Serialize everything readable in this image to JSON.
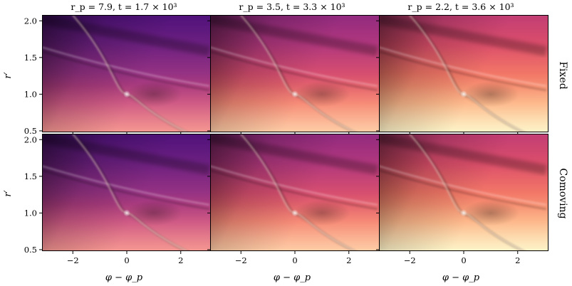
{
  "figure": {
    "column_titles": [
      "r_p = 7.9,   t = 1.7 × 10³",
      "r_p = 3.5,   t = 3.3 × 10³",
      "r_p = 2.2,   t = 3.6 × 10³"
    ],
    "row_labels": [
      "Fixed",
      "Comoving"
    ],
    "ylabel": "r′",
    "xlabel": "φ − φ_p"
  },
  "chart_data": {
    "type": "heatmap",
    "colormap": "magma",
    "grid": false,
    "layout": "2 rows × 3 columns",
    "xlabel": "φ − φ_p",
    "ylabel": "r′",
    "xlim": [
      -3.1416,
      3.1416
    ],
    "ylim": [
      0.48,
      2.08
    ],
    "xticks": [
      -2,
      0,
      2
    ],
    "xtick_labels": [
      "−2",
      "0",
      "2"
    ],
    "yticks": [
      0.5,
      1.0,
      1.5,
      2.0
    ],
    "ytick_labels": [
      "0.5",
      "1.0",
      "1.5",
      "2.0"
    ],
    "panels": [
      {
        "row": "Fixed",
        "r_p": 7.9,
        "t": 1700,
        "brightness": 0.0
      },
      {
        "row": "Fixed",
        "r_p": 3.5,
        "t": 3300,
        "brightness": 0.16
      },
      {
        "row": "Fixed",
        "r_p": 2.2,
        "t": 3600,
        "brightness": 0.27
      },
      {
        "row": "Comoving",
        "r_p": 7.9,
        "t": 1700,
        "brightness": 0.0
      },
      {
        "row": "Comoving",
        "r_p": 3.5,
        "t": 3300,
        "brightness": 0.16
      },
      {
        "row": "Comoving",
        "r_p": 2.2,
        "t": 3600,
        "brightness": 0.27
      }
    ],
    "features": {
      "planet_position": {
        "x": 0,
        "y": 1.0
      },
      "spiral_arm": "single wake passing through the planet at (0, 1.0)",
      "secondary_arm": "faint outer arm"
    }
  }
}
